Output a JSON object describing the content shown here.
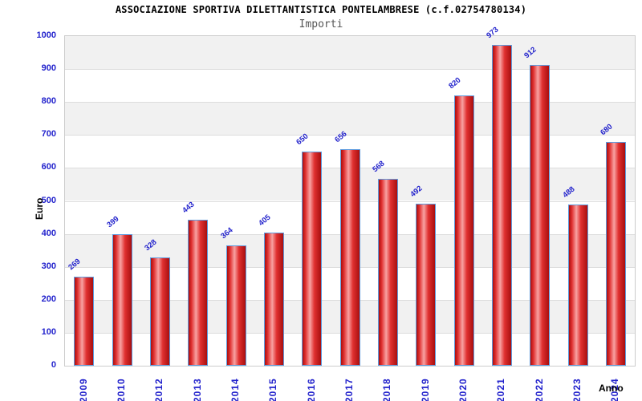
{
  "chart_data": {
    "type": "bar",
    "title": "ASSOCIAZIONE SPORTIVA DILETTANTISTICA PONTELAMBRESE (c.f.02754780134)",
    "subtitle": "Importi",
    "categories": [
      "2009",
      "2010",
      "2012",
      "2013",
      "2014",
      "2015",
      "2016",
      "2017",
      "2018",
      "2019",
      "2020",
      "2021",
      "2022",
      "2023",
      "2024"
    ],
    "values": [
      269,
      399,
      328,
      443,
      364,
      405,
      650,
      656,
      568,
      492,
      820,
      973,
      912,
      488,
      680
    ],
    "xlabel": "Anno",
    "ylabel": "Euro",
    "ylim": [
      0,
      1000
    ],
    "ytick_step": 100,
    "yticks": [
      0,
      100,
      200,
      300,
      400,
      500,
      600,
      700,
      800,
      900,
      1000
    ],
    "grid": true,
    "legend": "none",
    "colors": {
      "axis_text": "#2222cc",
      "title_text": "#000000",
      "subtitle_text": "#555555",
      "bar_border": "#5e9cdf",
      "bar_dark": "#a80f0f",
      "bar_main": "#e03030",
      "bar_highlight": "#f8a2a2",
      "band": "#f1f1f1",
      "gridline": "#dddddd",
      "frame": "#cccccc",
      "background": "#ffffff"
    }
  }
}
